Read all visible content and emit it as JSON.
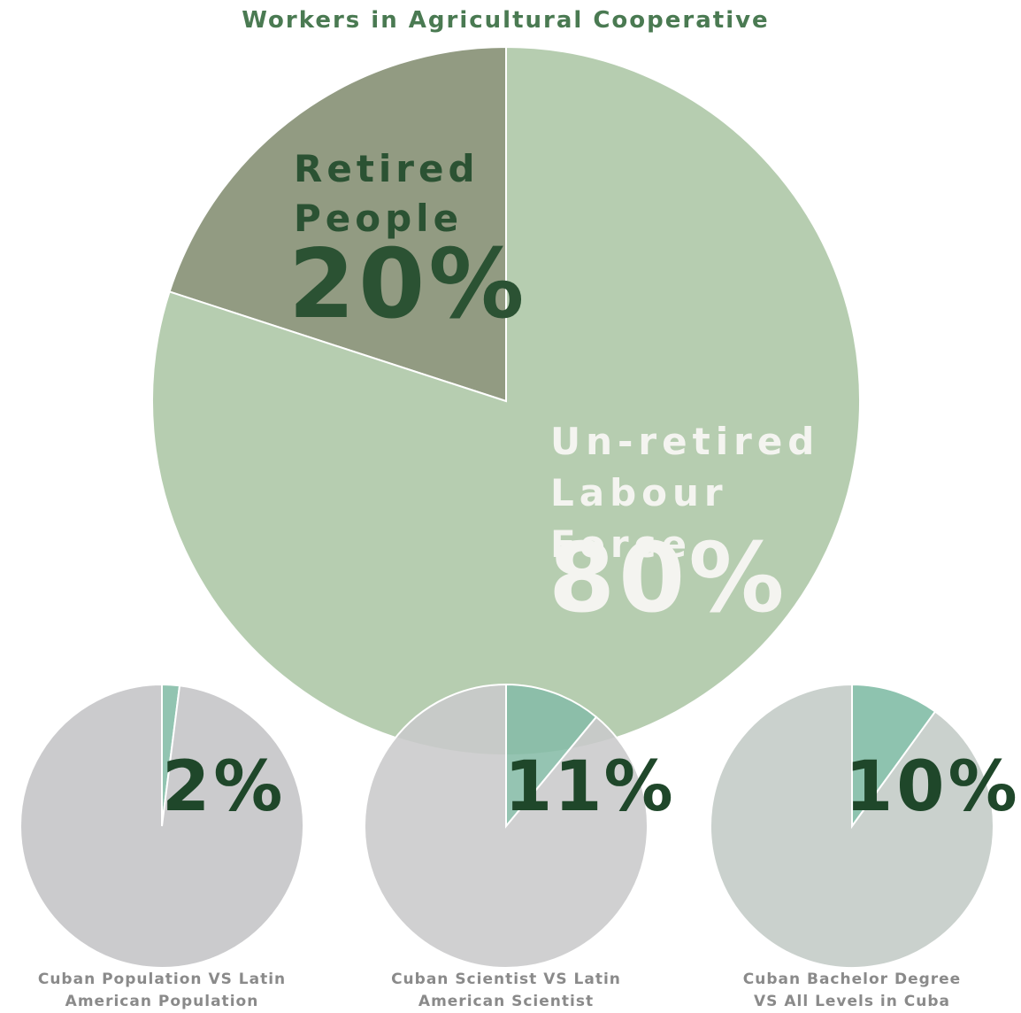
{
  "chart_data": [
    {
      "type": "pie",
      "title": "Workers in Agricultural Cooperative",
      "direction": "counterclockwise",
      "categories": [
        "Retired People",
        "Un-retired Labour Force"
      ],
      "values": [
        20,
        80
      ],
      "value_labels": [
        "20%",
        "80%"
      ],
      "colors": [
        "#7f8a6c",
        "#a9c4a2"
      ],
      "label_colors": [
        "#2b5233",
        "#f4f4f0"
      ]
    },
    {
      "type": "pie",
      "title": "Cuban Population VS Latin American Population",
      "direction": "clockwise",
      "categories": [
        null,
        null
      ],
      "values": [
        2,
        98
      ],
      "value_labels": [
        "2%",
        null
      ],
      "colors": [
        "#8cc1ad",
        "#c8c8ca"
      ],
      "label_colors": [
        "#1f472a",
        "#1f472a"
      ]
    },
    {
      "type": "pie",
      "title": "Cuban Scientist VS Latin American Scientist",
      "direction": "clockwise",
      "categories": [
        null,
        null
      ],
      "values": [
        11,
        89
      ],
      "value_labels": [
        "11%",
        null
      ],
      "colors": [
        "#86bca7",
        "#c9c9cb"
      ],
      "label_colors": [
        "#1f472a",
        "#1f472a"
      ]
    },
    {
      "type": "pie",
      "title": "Cuban Bachelor Degree VS All Levels in Cuba",
      "direction": "clockwise",
      "categories": [
        null,
        null
      ],
      "values": [
        10,
        90
      ],
      "value_labels": [
        "10%",
        null
      ],
      "colors": [
        "#88c0ab",
        "#c7cfca"
      ],
      "label_colors": [
        "#1f472a",
        "#1f472a"
      ]
    }
  ]
}
